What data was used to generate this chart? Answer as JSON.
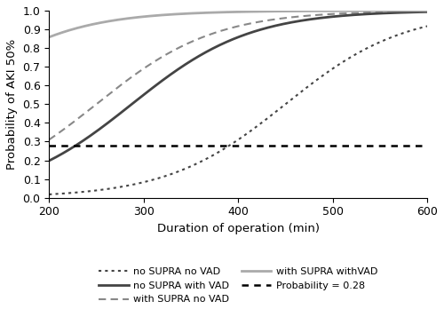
{
  "x_min": 200,
  "x_max": 600,
  "y_min": 0,
  "y_max": 1,
  "xlabel": "Duration of operation (min)",
  "ylabel": "Probability of AKI 50%",
  "prob_line": 0.28,
  "xticks": [
    200,
    300,
    400,
    500,
    600
  ],
  "yticks": [
    0,
    0.1,
    0.2,
    0.3,
    0.4,
    0.5,
    0.6,
    0.7,
    0.8,
    0.9,
    1
  ],
  "curves": [
    {
      "label": "no SUPRA no VAD",
      "color": "#444444",
      "linestyle": "dotted",
      "lw": 1.5,
      "intercept": -7.2,
      "slope": 0.016
    },
    {
      "label": "with SUPRA no VAD",
      "color": "#888888",
      "linestyle": "dashed",
      "lw": 1.5,
      "intercept": -4.0,
      "slope": 0.016
    },
    {
      "label": "no SUPRA with VAD",
      "color": "#444444",
      "linestyle": "solid",
      "lw": 2.0,
      "intercept": -4.6,
      "slope": 0.016
    },
    {
      "label": "with SUPRA withVAD",
      "color": "#aaaaaa",
      "linestyle": "solid",
      "lw": 2.0,
      "intercept": -1.4,
      "slope": 0.016
    }
  ],
  "legend_fontsize": 8,
  "axis_fontsize": 9.5,
  "tick_fontsize": 9
}
